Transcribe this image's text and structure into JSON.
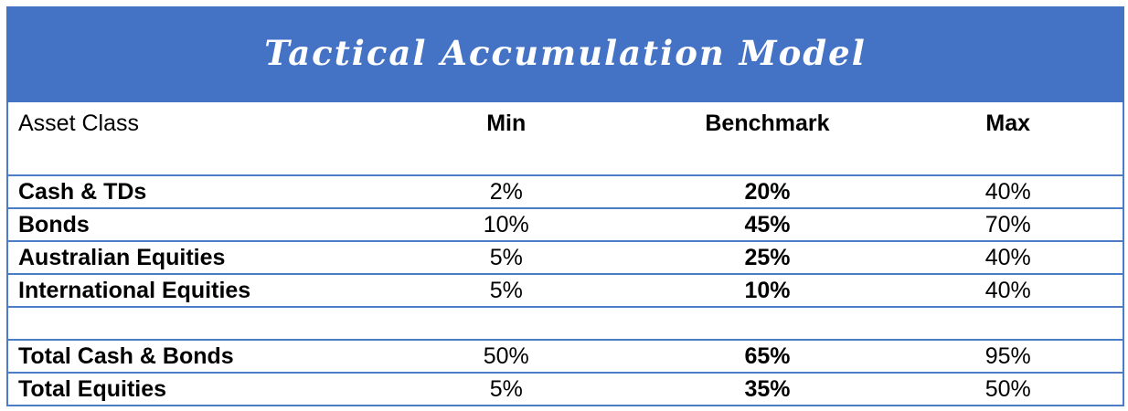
{
  "banner": {
    "title": "Tactical Accumulation Model"
  },
  "colors": {
    "banner_blue": "#4472C4",
    "border_blue": "#4C7CC8",
    "title_text": "#FFFFFF",
    "body_text": "#000000"
  },
  "table": {
    "columns": [
      "Asset Class",
      "Min",
      "Benchmark",
      "Max"
    ],
    "rows": [
      {
        "cells": [
          "Cash & TDs",
          "2%",
          "20%",
          "40%"
        ]
      },
      {
        "cells": [
          "Bonds",
          "10%",
          "45%",
          "70%"
        ]
      },
      {
        "cells": [
          "Australian Equities",
          "5%",
          "25%",
          "40%"
        ]
      },
      {
        "cells": [
          "International Equities",
          "5%",
          "10%",
          "40%"
        ]
      },
      {
        "cells": [
          "",
          "",
          "",
          ""
        ]
      },
      {
        "cells": [
          "Total Cash & Bonds",
          "50%",
          "65%",
          "95%"
        ]
      },
      {
        "cells": [
          "Total Equities",
          "5%",
          "35%",
          "50%"
        ]
      }
    ]
  }
}
